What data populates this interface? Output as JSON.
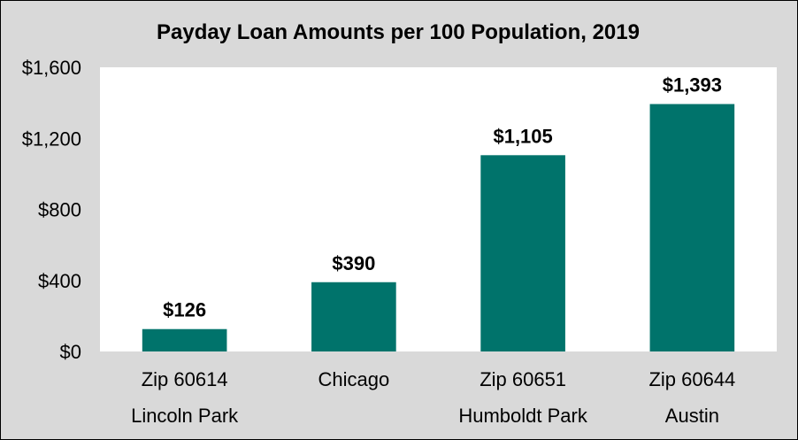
{
  "chart_data": {
    "type": "bar",
    "title": "Payday Loan Amounts per 100 Population, 2019",
    "categories": [
      "Zip 60614",
      "Chicago",
      "Zip 60651",
      "Zip 60644"
    ],
    "sublabels": [
      "Lincoln Park",
      "",
      "Humboldt Park",
      "Austin"
    ],
    "values": [
      126,
      390,
      1105,
      1393
    ],
    "value_labels": [
      "$126",
      "$390",
      "$1,105",
      "$1,393"
    ],
    "ylim": [
      0,
      1600
    ],
    "yticks": [
      0,
      400,
      800,
      1200,
      1600
    ],
    "ytick_labels": [
      "$0",
      "$400",
      "$800",
      "$1,200",
      "$1,600"
    ],
    "grid": false,
    "legend": "none",
    "bar_color": "#00736b",
    "plot_background": "#ffffff",
    "chart_background": "#d9d9d9"
  }
}
